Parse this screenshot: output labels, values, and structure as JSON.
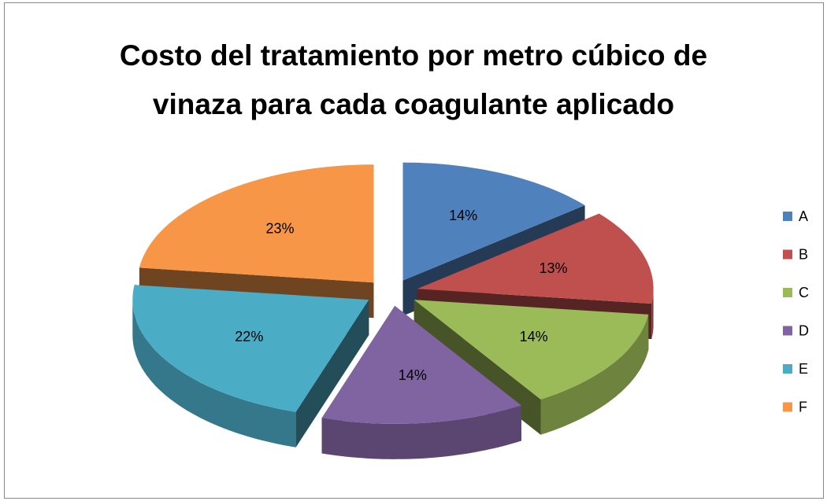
{
  "chart_data": {
    "type": "pie3d",
    "title": "Costo del tratamiento por metro cúbico de vinaza para cada coagulante aplicado",
    "categories": [
      "A",
      "B",
      "C",
      "D",
      "E",
      "F"
    ],
    "values": [
      14,
      13,
      14,
      14,
      22,
      23
    ],
    "value_labels": [
      "14%",
      "13%",
      "14%",
      "14%",
      "22%",
      "23%"
    ],
    "colors": [
      "#4f81bd",
      "#c0504d",
      "#9bbb59",
      "#8064a2",
      "#4bacc6",
      "#f79646"
    ],
    "legend": "right"
  }
}
